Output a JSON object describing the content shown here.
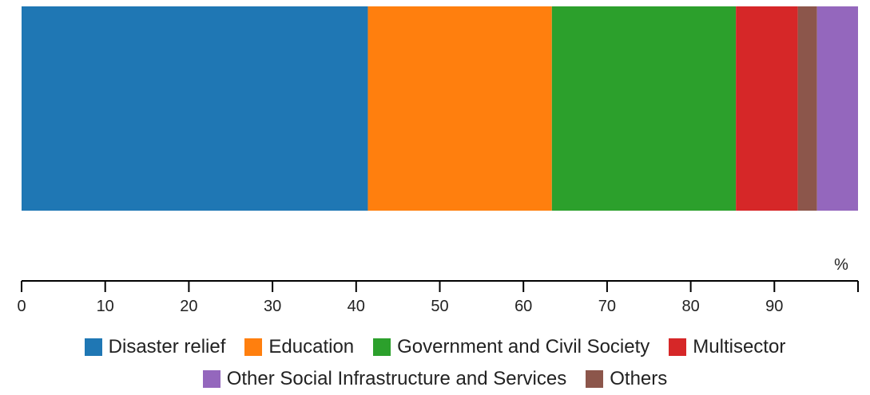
{
  "chart_data": {
    "type": "bar",
    "orientation": "horizontal-stacked",
    "unit_label": "%",
    "xlim": [
      0,
      100
    ],
    "x_ticks": [
      0,
      10,
      20,
      30,
      40,
      50,
      60,
      70,
      80,
      90
    ],
    "grid": false,
    "legend_position": "bottom",
    "series": [
      {
        "name": "Disaster relief",
        "value": 41.4,
        "color": "#1f77b4"
      },
      {
        "name": "Education",
        "value": 22.0,
        "color": "#ff7f0e"
      },
      {
        "name": "Government and Civil Society",
        "value": 22.0,
        "color": "#2ca02c"
      },
      {
        "name": "Multisector",
        "value": 7.4,
        "color": "#d62728"
      },
      {
        "name": "Other Social Infrastructure and Services",
        "value": 4.9,
        "color": "#9467bd"
      },
      {
        "name": "Others",
        "value": 2.3,
        "color": "#8c564b"
      }
    ],
    "stack_order": [
      0,
      1,
      2,
      3,
      5,
      4
    ],
    "legend_rows": [
      [
        0,
        1,
        2,
        3
      ],
      [
        4,
        5
      ]
    ]
  }
}
